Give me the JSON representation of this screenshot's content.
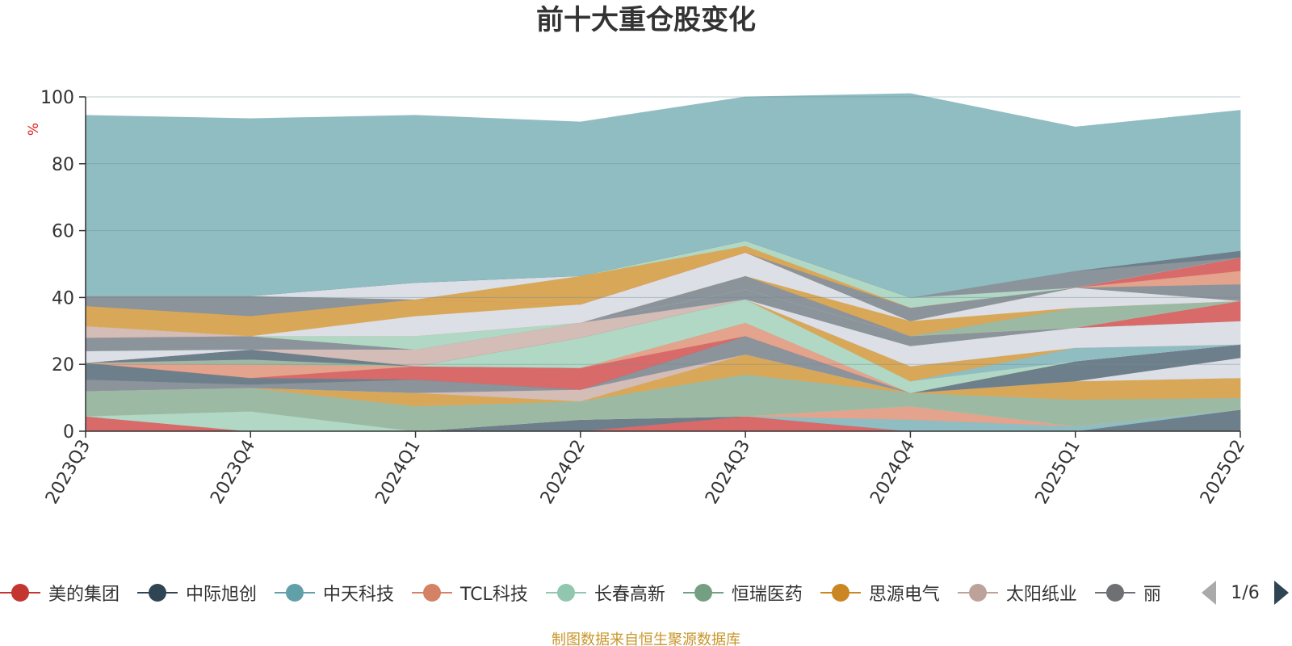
{
  "chart_data": {
    "type": "area",
    "title": "前十大重仓股变化",
    "ylabel": "%",
    "ylim": [
      0,
      100
    ],
    "yticks": [
      0,
      20,
      40,
      60,
      80,
      100
    ],
    "grid": true,
    "categories": [
      "2023Q3",
      "2023Q4",
      "2024Q1",
      "2024Q2",
      "2024Q3",
      "2024Q4",
      "2025Q1",
      "2025Q2"
    ],
    "series": [
      {
        "name": "美的集团",
        "color": "#d86a6a",
        "values": [
          4.5,
          0,
          0,
          0,
          4.5,
          0,
          0,
          0
        ]
      },
      {
        "name": "",
        "color": "#6e7f8c",
        "values": [
          0,
          0,
          0,
          3.5,
          0,
          0,
          0,
          6.5
        ]
      },
      {
        "name": "中天科技",
        "color": "#8fbdc2",
        "values": [
          0,
          0,
          0,
          0,
          0,
          3.5,
          1.5,
          0
        ]
      },
      {
        "name": "TCL科技",
        "color": "#e3a38c",
        "values": [
          0,
          0,
          0,
          0,
          0,
          4,
          0,
          0
        ]
      },
      {
        "name": "长春高新",
        "color": "#b0d8c5",
        "values": [
          0,
          6,
          0,
          0,
          0,
          0,
          0,
          0
        ]
      },
      {
        "name": "恒瑞医药",
        "color": "#9cbaa3",
        "values": [
          7.5,
          7,
          7.5,
          5.5,
          12.5,
          4,
          8,
          3.5
        ]
      },
      {
        "name": "思源电气",
        "color": "#d9a758",
        "values": [
          0,
          0,
          4,
          0,
          6,
          0,
          5.5,
          6
        ]
      },
      {
        "name": "太阳纸业",
        "color": "#d4bcb7",
        "values": [
          0,
          0,
          0,
          3.5,
          0,
          0,
          0,
          0
        ]
      },
      {
        "name": "",
        "color": "#dcdfe6",
        "values": [
          0,
          0,
          0,
          0,
          0,
          0,
          0,
          6
        ]
      },
      {
        "name": "",
        "color": "#8b939b",
        "values": [
          3.5,
          1,
          4,
          0,
          5.5,
          0,
          0,
          0
        ]
      },
      {
        "name": "",
        "color": "#6e7f8c",
        "values": [
          5,
          2,
          0,
          0,
          0,
          0,
          6,
          4
        ]
      },
      {
        "name": "",
        "color": "#d86a6a",
        "values": [
          0,
          0,
          4,
          6.5,
          0,
          0,
          0,
          0
        ]
      },
      {
        "name": "",
        "color": "#e3a38c",
        "values": [
          0,
          4,
          0,
          0,
          4,
          0,
          0,
          0
        ]
      },
      {
        "name": "",
        "color": "#9cbaa3",
        "values": [
          0,
          1.5,
          0,
          0,
          0,
          0,
          0,
          0
        ]
      },
      {
        "name": "",
        "color": "#b0d8c5",
        "values": [
          0,
          0,
          0,
          9,
          7,
          3.5,
          0,
          0
        ]
      },
      {
        "name": "",
        "color": "#8fbdc2",
        "values": [
          0,
          0,
          0,
          0,
          0,
          0,
          4,
          0
        ]
      },
      {
        "name": "",
        "color": "#d9a758",
        "values": [
          0,
          0,
          0,
          0,
          0,
          4.5,
          0,
          0
        ]
      },
      {
        "name": "",
        "color": "#6e7f8c",
        "values": [
          0,
          3,
          0,
          0,
          0,
          0,
          0,
          0
        ]
      },
      {
        "name": "",
        "color": "#d4bcb7",
        "values": [
          0,
          0,
          5,
          4.5,
          0,
          0,
          0,
          0
        ]
      },
      {
        "name": "",
        "color": "#dcdfe6",
        "values": [
          3.5,
          0,
          0,
          0,
          0,
          6,
          6,
          7
        ]
      },
      {
        "name": "",
        "color": "#8b939b",
        "values": [
          4,
          4,
          0,
          0,
          3,
          3,
          0,
          0
        ]
      },
      {
        "name": "",
        "color": "#d86a6a",
        "values": [
          0,
          0,
          0,
          0,
          0,
          0,
          0,
          6
        ]
      },
      {
        "name": "",
        "color": "#d4bcb7",
        "values": [
          3.5,
          0,
          0,
          0,
          0,
          0,
          0,
          0
        ]
      },
      {
        "name": "",
        "color": "#9cbaa3",
        "values": [
          0,
          0,
          0,
          0,
          0,
          0,
          6,
          0
        ]
      },
      {
        "name": "",
        "color": "#b0d8c5",
        "values": [
          0,
          0,
          4,
          0,
          0,
          0,
          0,
          0
        ]
      },
      {
        "name": "",
        "color": "#8b939b",
        "values": [
          0,
          0,
          0,
          0,
          4,
          0,
          0,
          0
        ]
      },
      {
        "name": "",
        "color": "#d9a758",
        "values": [
          0,
          0,
          0,
          0,
          0,
          4.5,
          0,
          0
        ]
      },
      {
        "name": "",
        "color": "#dcdfe6",
        "values": [
          0,
          0,
          6,
          5.5,
          7,
          0,
          6,
          0
        ]
      },
      {
        "name": "",
        "color": "#d9a758",
        "values": [
          6,
          6,
          5,
          0,
          0,
          0,
          0,
          0
        ]
      },
      {
        "name": "",
        "color": "#8b939b",
        "values": [
          3,
          6,
          0,
          0,
          0,
          4,
          0,
          5
        ]
      },
      {
        "name": "",
        "color": "#e3a38c",
        "values": [
          0,
          0,
          0,
          0,
          0,
          0,
          0,
          4
        ]
      },
      {
        "name": "",
        "color": "#d86a6a",
        "values": [
          0,
          0,
          0,
          0,
          0,
          0,
          0,
          4
        ]
      },
      {
        "name": "",
        "color": "#d9a758",
        "values": [
          0,
          0,
          0,
          8.5,
          2,
          0,
          0,
          0
        ]
      },
      {
        "name": "",
        "color": "#b0d8c5",
        "values": [
          0,
          0,
          0,
          0,
          1.5,
          3,
          0,
          0
        ]
      },
      {
        "name": "",
        "color": "#dcdfe6",
        "values": [
          0,
          0,
          5,
          0,
          0,
          0,
          0,
          0
        ]
      },
      {
        "name": "",
        "color": "#8b939b",
        "values": [
          0,
          0,
          0,
          0,
          0,
          0,
          5,
          0
        ]
      },
      {
        "name": "",
        "color": "#6e7f8c",
        "values": [
          0,
          0,
          0,
          0,
          0,
          0,
          0,
          2
        ]
      },
      {
        "name": "",
        "color": "#8fbdc2",
        "values": [
          54,
          53,
          50,
          46,
          43,
          61,
          43,
          42
        ]
      }
    ]
  },
  "legend": {
    "items": [
      {
        "label": "美的集团",
        "color": "#c23531",
        "symbol": "circle"
      },
      {
        "label": "中际旭创",
        "color": "#2f4554",
        "symbol": "circle"
      },
      {
        "label": "中天科技",
        "color": "#61a0a8",
        "symbol": "circle"
      },
      {
        "label": "TCL科技",
        "color": "#d48265",
        "symbol": "circle"
      },
      {
        "label": "长春高新",
        "color": "#91c7ae",
        "symbol": "circle"
      },
      {
        "label": "恒瑞医药",
        "color": "#749f83",
        "symbol": "circle"
      },
      {
        "label": "思源电气",
        "color": "#ca8622",
        "symbol": "circle"
      },
      {
        "label": "太阳纸业",
        "color": "#bda29a",
        "symbol": "circle"
      },
      {
        "label": "丽",
        "color": "#6e7074",
        "symbol": "circle"
      }
    ],
    "page_text": "1/6"
  },
  "source_note": "制图数据来自恒生聚源数据库"
}
